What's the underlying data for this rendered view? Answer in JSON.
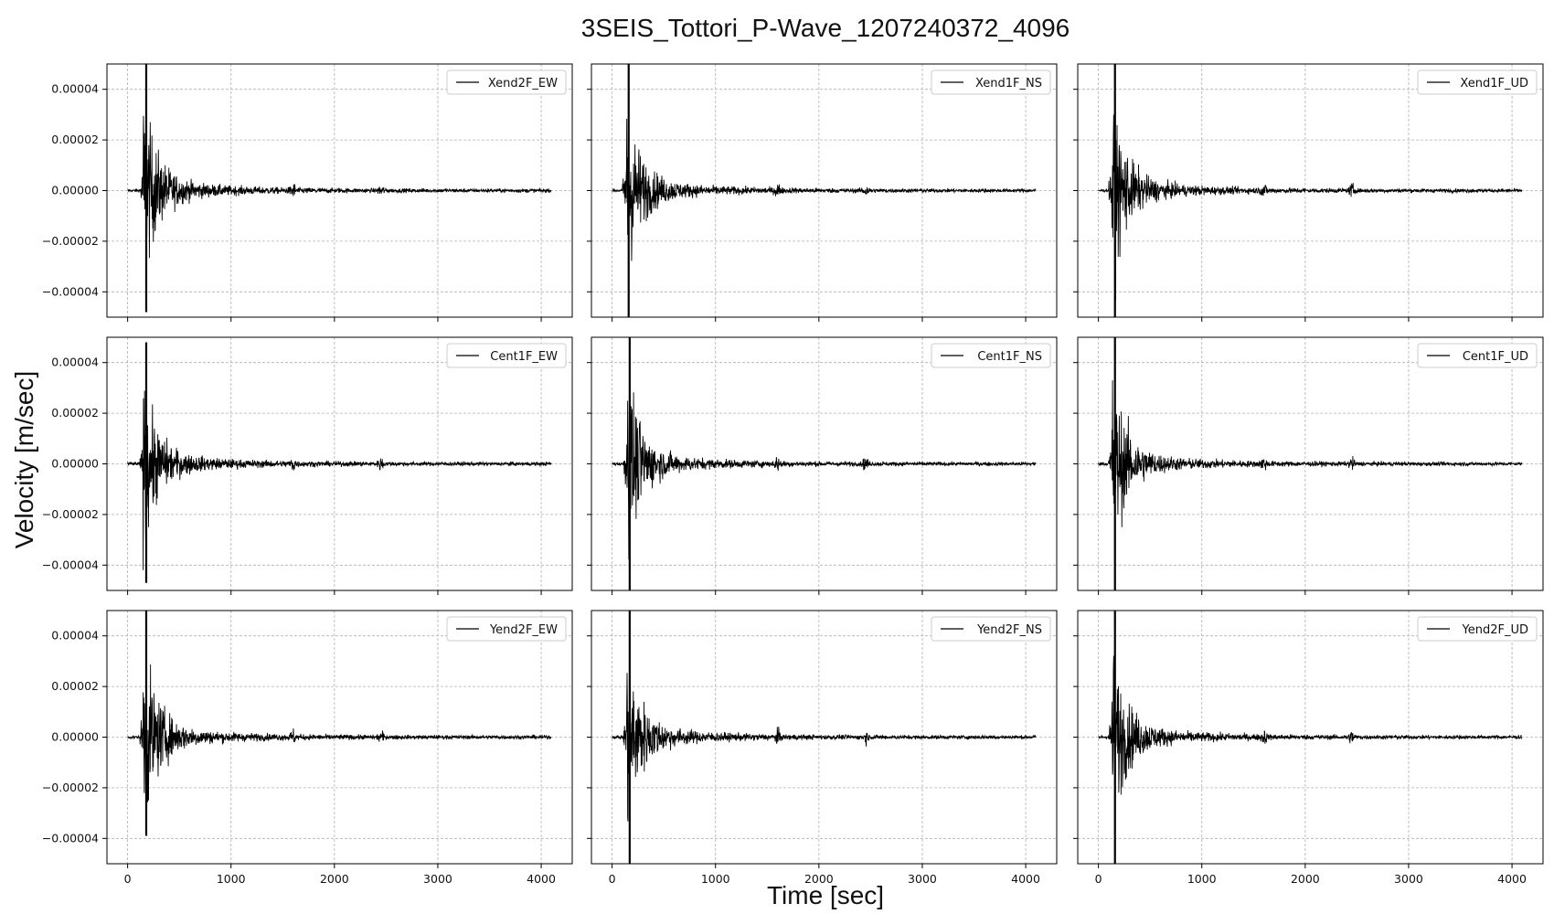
{
  "figure": {
    "title": "3SEIS_Tottori_P-Wave_1207240372_4096",
    "xlabel": "Time [sec]",
    "ylabel": "Velocity [m/sec]"
  },
  "chart_data": {
    "type": "line",
    "layout": "3x3 grid, shared axes",
    "xlim": [
      -200,
      4300
    ],
    "ylim": [
      -5e-05,
      5e-05
    ],
    "xticks": [
      0,
      1000,
      2000,
      3000,
      4000
    ],
    "xtick_labels": [
      "0",
      "1000",
      "2000",
      "3000",
      "4000"
    ],
    "yticks": [
      4e-05,
      2e-05,
      0,
      -2e-05,
      -4e-05
    ],
    "ytick_labels": [
      "0.00004",
      "0.00002",
      "0.00000",
      "−0.00002",
      "−0.00004"
    ],
    "grid": true,
    "legend_position": "top-right",
    "line_color": "#000000",
    "time_range": [
      0,
      4096
    ],
    "panels": [
      {
        "name": "Xend2F_EW",
        "onset": 150,
        "peak_pos": 5.5e-05,
        "peak_neg": -4.8e-05,
        "events": [
          1600,
          2450
        ]
      },
      {
        "name": "Xend1F_NS",
        "onset": 130,
        "peak_pos": 5.5e-05,
        "peak_neg": -5.5e-05,
        "events": [
          1600,
          2450
        ]
      },
      {
        "name": "Xend1F_UD",
        "onset": 130,
        "peak_pos": 5.5e-05,
        "peak_neg": -5.5e-05,
        "events": [
          1600,
          2450
        ]
      },
      {
        "name": "Cent1F_EW",
        "onset": 150,
        "peak_pos": 4.8e-05,
        "peak_neg": -4.7e-05,
        "events": [
          1600,
          2450
        ]
      },
      {
        "name": "Cent1F_NS",
        "onset": 140,
        "peak_pos": 5.5e-05,
        "peak_neg": -5.5e-05,
        "events": [
          1600,
          2450
        ]
      },
      {
        "name": "Cent1F_UD",
        "onset": 130,
        "peak_pos": 5.5e-05,
        "peak_neg": -5.5e-05,
        "events": [
          1600,
          2450
        ]
      },
      {
        "name": "Yend2F_EW",
        "onset": 150,
        "peak_pos": 5.5e-05,
        "peak_neg": -3.9e-05,
        "events": [
          1600,
          2450
        ]
      },
      {
        "name": "Yend2F_NS",
        "onset": 140,
        "peak_pos": 5.5e-05,
        "peak_neg": -5.5e-05,
        "events": [
          1600,
          2450
        ]
      },
      {
        "name": "Yend2F_UD",
        "onset": 130,
        "peak_pos": 5.5e-05,
        "peak_neg": -5.5e-05,
        "events": [
          1600,
          2450
        ]
      }
    ]
  }
}
